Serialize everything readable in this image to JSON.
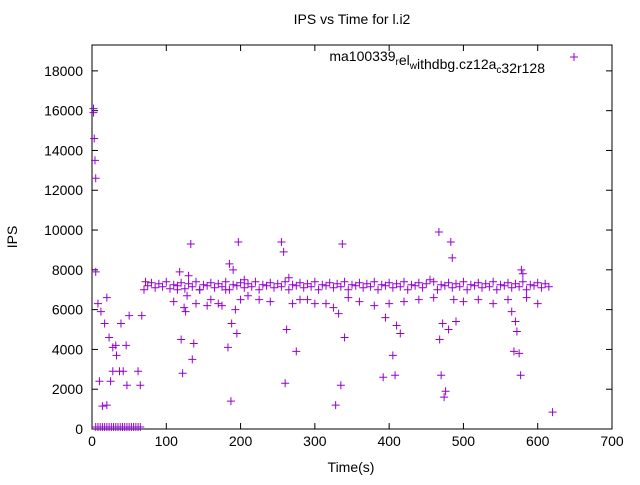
{
  "chart_data": {
    "type": "scatter",
    "title": "IPS vs Time for l.i2",
    "xlabel": "Time(s)",
    "ylabel": "IPS",
    "xlim": [
      0,
      700
    ],
    "ylim": [
      0,
      19300
    ],
    "xticks": [
      0,
      100,
      200,
      300,
      400,
      500,
      600,
      700
    ],
    "yticks": [
      0,
      2000,
      4000,
      6000,
      8000,
      10000,
      12000,
      14000,
      16000,
      18000
    ],
    "grid": false,
    "legend_position": "top-right",
    "series": [
      {
        "name": "ma100339_rel_withdbg.cz12a_c32r128",
        "legend_parts": [
          {
            "t": "ma100339",
            "sub": false
          },
          {
            "t": "r",
            "sub": true
          },
          {
            "t": "el",
            "sub": false
          },
          {
            "t": "w",
            "sub": true
          },
          {
            "t": "ithdbg.cz12a",
            "sub": false
          },
          {
            "t": "c",
            "sub": true
          },
          {
            "t": "32r128",
            "sub": false
          }
        ],
        "color": "#9400d3",
        "marker": "plus",
        "points": [
          [
            2,
            16100
          ],
          [
            2,
            15900
          ],
          [
            3,
            14600
          ],
          [
            4,
            13500
          ],
          [
            5,
            12600
          ],
          [
            5,
            7900
          ],
          [
            8,
            6300
          ],
          [
            10,
            2400
          ],
          [
            12,
            5900
          ],
          [
            14,
            1150
          ],
          [
            17,
            5300
          ],
          [
            20,
            1200
          ],
          [
            20,
            6600
          ],
          [
            23,
            4600
          ],
          [
            25,
            2400
          ],
          [
            28,
            2900
          ],
          [
            28,
            4100
          ],
          [
            32,
            4200
          ],
          [
            33,
            3700
          ],
          [
            37,
            2900
          ],
          [
            39,
            5300
          ],
          [
            42,
            2900
          ],
          [
            46,
            4200
          ],
          [
            47,
            2200
          ],
          [
            50,
            5700
          ],
          [
            62,
            2900
          ],
          [
            65,
            2200
          ],
          [
            67,
            5700
          ],
          [
            5,
            100
          ],
          [
            8,
            100
          ],
          [
            11,
            100
          ],
          [
            14,
            100
          ],
          [
            17,
            100
          ],
          [
            20,
            100
          ],
          [
            23,
            100
          ],
          [
            26,
            100
          ],
          [
            29,
            100
          ],
          [
            32,
            100
          ],
          [
            35,
            100
          ],
          [
            38,
            100
          ],
          [
            41,
            100
          ],
          [
            44,
            100
          ],
          [
            47,
            100
          ],
          [
            50,
            100
          ],
          [
            53,
            100
          ],
          [
            56,
            100
          ],
          [
            59,
            100
          ],
          [
            62,
            100
          ],
          [
            65,
            100
          ],
          [
            70,
            7000
          ],
          [
            72,
            7400
          ],
          [
            75,
            7200
          ],
          [
            80,
            7350
          ],
          [
            85,
            7100
          ],
          [
            90,
            7300
          ],
          [
            95,
            7150
          ],
          [
            100,
            7400
          ],
          [
            105,
            7050
          ],
          [
            110,
            7250
          ],
          [
            115,
            7200
          ],
          [
            120,
            7350
          ],
          [
            125,
            7050
          ],
          [
            130,
            7300
          ],
          [
            135,
            7150
          ],
          [
            140,
            7400
          ],
          [
            145,
            7000
          ],
          [
            150,
            7250
          ],
          [
            155,
            7200
          ],
          [
            160,
            7350
          ],
          [
            165,
            7100
          ],
          [
            170,
            7300
          ],
          [
            175,
            7150
          ],
          [
            180,
            7400
          ],
          [
            185,
            7000
          ],
          [
            190,
            7250
          ],
          [
            195,
            7200
          ],
          [
            200,
            7350
          ],
          [
            205,
            7100
          ],
          [
            210,
            7300
          ],
          [
            215,
            7150
          ],
          [
            220,
            7400
          ],
          [
            225,
            7000
          ],
          [
            230,
            7250
          ],
          [
            235,
            7200
          ],
          [
            240,
            7350
          ],
          [
            245,
            7100
          ],
          [
            250,
            7300
          ],
          [
            255,
            7150
          ],
          [
            260,
            7400
          ],
          [
            265,
            7000
          ],
          [
            270,
            7250
          ],
          [
            275,
            7200
          ],
          [
            280,
            7350
          ],
          [
            285,
            7100
          ],
          [
            290,
            7300
          ],
          [
            295,
            7150
          ],
          [
            300,
            7400
          ],
          [
            305,
            7000
          ],
          [
            310,
            7250
          ],
          [
            315,
            7200
          ],
          [
            320,
            7350
          ],
          [
            325,
            7100
          ],
          [
            330,
            7300
          ],
          [
            335,
            7150
          ],
          [
            340,
            7400
          ],
          [
            345,
            7000
          ],
          [
            350,
            7250
          ],
          [
            355,
            7200
          ],
          [
            360,
            7350
          ],
          [
            365,
            7100
          ],
          [
            370,
            7300
          ],
          [
            375,
            7150
          ],
          [
            380,
            7400
          ],
          [
            385,
            7000
          ],
          [
            390,
            7250
          ],
          [
            395,
            7200
          ],
          [
            400,
            7350
          ],
          [
            405,
            7100
          ],
          [
            410,
            7300
          ],
          [
            415,
            7150
          ],
          [
            420,
            7400
          ],
          [
            425,
            7000
          ],
          [
            430,
            7250
          ],
          [
            435,
            7200
          ],
          [
            440,
            7350
          ],
          [
            445,
            7100
          ],
          [
            450,
            7300
          ],
          [
            455,
            7500
          ],
          [
            460,
            7400
          ],
          [
            465,
            7000
          ],
          [
            470,
            7250
          ],
          [
            475,
            7200
          ],
          [
            480,
            7350
          ],
          [
            485,
            7100
          ],
          [
            490,
            7300
          ],
          [
            495,
            7150
          ],
          [
            500,
            7400
          ],
          [
            505,
            7000
          ],
          [
            510,
            7250
          ],
          [
            515,
            7200
          ],
          [
            520,
            7350
          ],
          [
            525,
            7100
          ],
          [
            530,
            7300
          ],
          [
            535,
            7150
          ],
          [
            540,
            7400
          ],
          [
            545,
            7000
          ],
          [
            550,
            7250
          ],
          [
            555,
            7200
          ],
          [
            560,
            7350
          ],
          [
            565,
            7100
          ],
          [
            570,
            7300
          ],
          [
            575,
            7150
          ],
          [
            580,
            7400
          ],
          [
            585,
            7000
          ],
          [
            590,
            7250
          ],
          [
            595,
            7200
          ],
          [
            600,
            7350
          ],
          [
            605,
            7100
          ],
          [
            610,
            7300
          ],
          [
            615,
            7150
          ],
          [
            110,
            6400
          ],
          [
            115,
            7000
          ],
          [
            118,
            7900
          ],
          [
            120,
            4500
          ],
          [
            122,
            2800
          ],
          [
            124,
            6100
          ],
          [
            126,
            5900
          ],
          [
            128,
            6700
          ],
          [
            130,
            7700
          ],
          [
            133,
            9300
          ],
          [
            135,
            3500
          ],
          [
            137,
            4300
          ],
          [
            140,
            6300
          ],
          [
            145,
            7000
          ],
          [
            155,
            6200
          ],
          [
            160,
            6500
          ],
          [
            170,
            6300
          ],
          [
            175,
            6200
          ],
          [
            180,
            7000
          ],
          [
            183,
            4100
          ],
          [
            185,
            8300
          ],
          [
            187,
            1400
          ],
          [
            188,
            5300
          ],
          [
            190,
            8000
          ],
          [
            193,
            6000
          ],
          [
            195,
            4800
          ],
          [
            197,
            9400
          ],
          [
            200,
            6500
          ],
          [
            205,
            7500
          ],
          [
            210,
            6700
          ],
          [
            225,
            6500
          ],
          [
            240,
            6400
          ],
          [
            255,
            9400
          ],
          [
            258,
            8900
          ],
          [
            260,
            2300
          ],
          [
            262,
            5000
          ],
          [
            265,
            7600
          ],
          [
            270,
            6300
          ],
          [
            275,
            3900
          ],
          [
            280,
            6500
          ],
          [
            290,
            6500
          ],
          [
            300,
            6300
          ],
          [
            315,
            6300
          ],
          [
            325,
            6100
          ],
          [
            328,
            1200
          ],
          [
            332,
            5800
          ],
          [
            335,
            2200
          ],
          [
            337,
            9300
          ],
          [
            340,
            4600
          ],
          [
            345,
            6600
          ],
          [
            360,
            6400
          ],
          [
            380,
            6200
          ],
          [
            392,
            2600
          ],
          [
            395,
            5600
          ],
          [
            400,
            6300
          ],
          [
            405,
            3700
          ],
          [
            408,
            2700
          ],
          [
            410,
            5200
          ],
          [
            415,
            4800
          ],
          [
            420,
            6400
          ],
          [
            440,
            6500
          ],
          [
            460,
            6600
          ],
          [
            467,
            9900
          ],
          [
            468,
            4500
          ],
          [
            470,
            2700
          ],
          [
            472,
            5300
          ],
          [
            474,
            1600
          ],
          [
            476,
            1900
          ],
          [
            480,
            5000
          ],
          [
            483,
            9400
          ],
          [
            485,
            8600
          ],
          [
            487,
            6500
          ],
          [
            490,
            5400
          ],
          [
            500,
            6400
          ],
          [
            520,
            6500
          ],
          [
            540,
            6300
          ],
          [
            560,
            6500
          ],
          [
            565,
            5900
          ],
          [
            568,
            3900
          ],
          [
            570,
            5400
          ],
          [
            572,
            4900
          ],
          [
            575,
            3800
          ],
          [
            577,
            2700
          ],
          [
            578,
            8000
          ],
          [
            580,
            7800
          ],
          [
            585,
            6600
          ],
          [
            600,
            6300
          ],
          [
            620,
            850
          ]
        ]
      }
    ]
  }
}
